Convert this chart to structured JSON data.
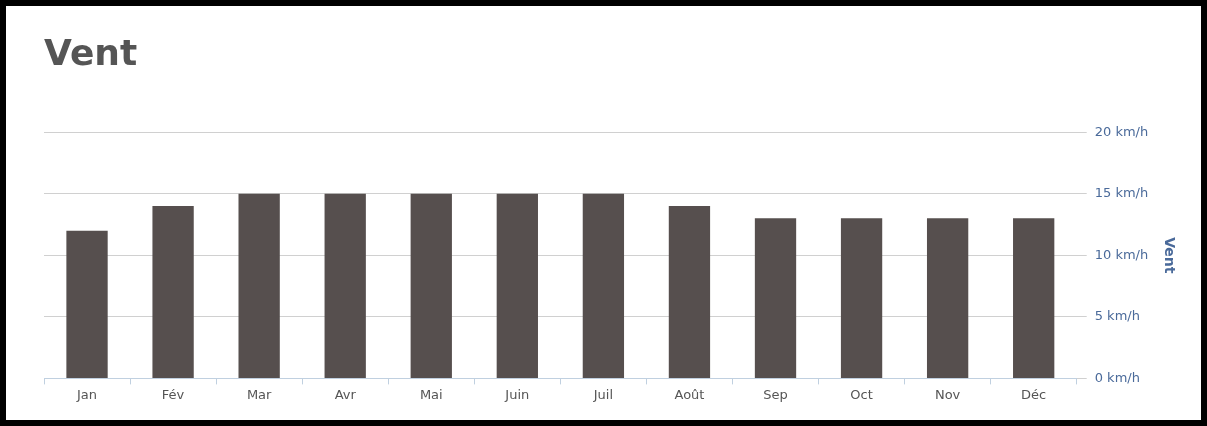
{
  "chart_data": {
    "type": "bar",
    "title": "Vent",
    "ylabel": "Vent",
    "categories": [
      "Jan",
      "Fév",
      "Mar",
      "Avr",
      "Mai",
      "Juin",
      "Juil",
      "Août",
      "Sep",
      "Oct",
      "Nov",
      "Déc"
    ],
    "values": [
      12,
      14,
      15,
      15,
      15,
      15,
      15,
      14,
      13,
      13,
      13,
      13
    ],
    "color": "#564f4e",
    "ylim": [
      0,
      20
    ],
    "yticks": [
      {
        "value": 0,
        "label": "0 km/h"
      },
      {
        "value": 5,
        "label": "5 km/h"
      },
      {
        "value": 10,
        "label": "10 km/h"
      },
      {
        "value": 15,
        "label": "15 km/h"
      },
      {
        "value": 20,
        "label": "20 km/h"
      }
    ],
    "grid": "y",
    "legend": false
  }
}
